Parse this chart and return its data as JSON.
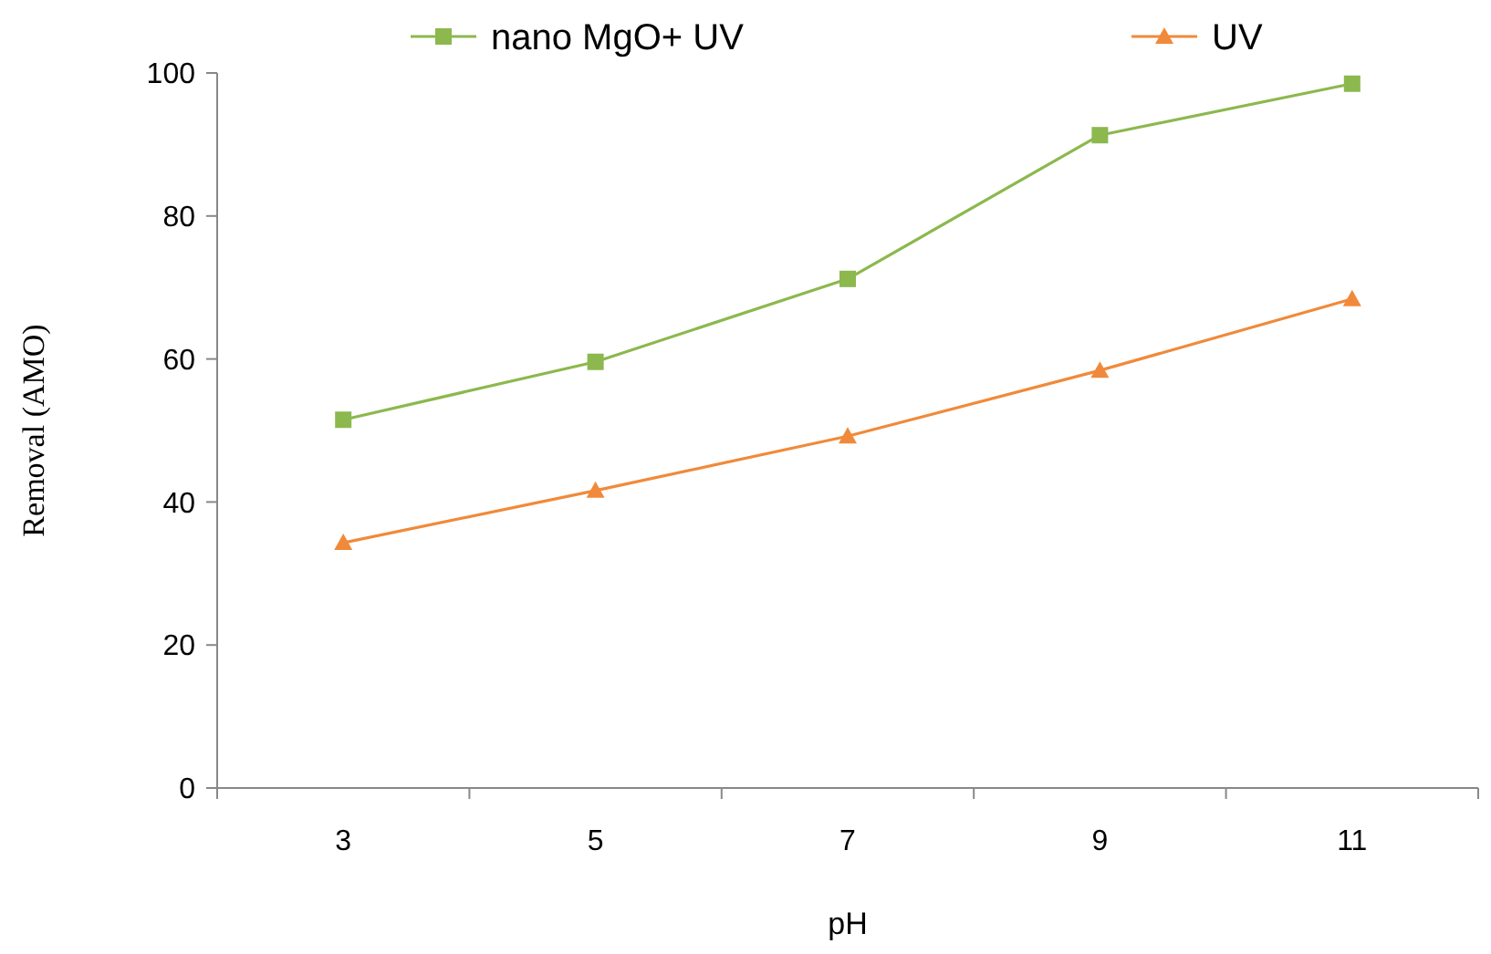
{
  "chart_data": {
    "type": "line",
    "xlabel": "pH",
    "ylabel": "Removal (AMO)",
    "categories": [
      "3",
      "5",
      "7",
      "9",
      "11"
    ],
    "series": [
      {
        "name": "nano MgO+ UV",
        "color": "#8cb84e",
        "marker": "square",
        "values": [
          51.5,
          59.6,
          71.2,
          91.3,
          98.5
        ]
      },
      {
        "name": "UV",
        "color": "#f08a3a",
        "marker": "triangle",
        "values": [
          34.3,
          41.6,
          49.2,
          58.4,
          68.4
        ]
      }
    ],
    "ylim": [
      0,
      100
    ],
    "yticks": [
      0,
      20,
      40,
      60,
      80,
      100
    ],
    "grid": false,
    "legend": "top"
  }
}
